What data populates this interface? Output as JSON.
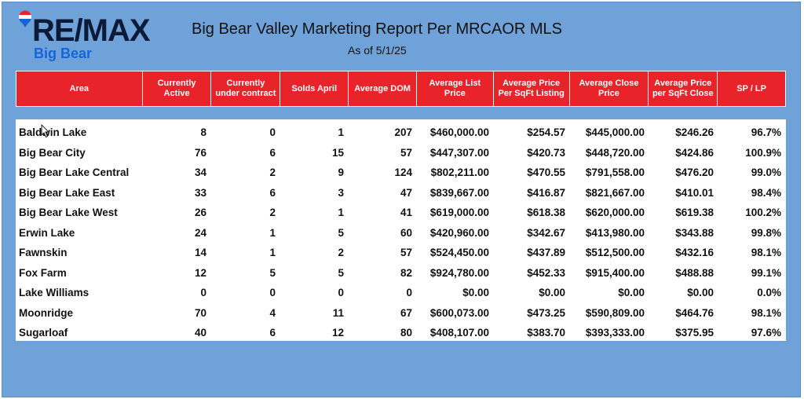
{
  "header": {
    "logo_main": "RE/MAX",
    "logo_sub": "Big Bear",
    "title": "Big Bear Valley Marketing Report Per MRCAOR MLS",
    "subtitle": "As of 5/1/25"
  },
  "colors": {
    "background": "#6fa2d8",
    "header_red": "#e8232a",
    "logo_navy": "#0b1a36",
    "logo_blue": "#1565d8"
  },
  "table": {
    "columns": [
      "Area",
      "Currently Active",
      "Currently under contract",
      "Solds April",
      "Average DOM",
      "Average List Price",
      "Average Price Per SqFt Listing",
      "Average Close Price",
      "Average Price per SqFt Close",
      "SP / LP"
    ],
    "rows": [
      [
        "Baldwin Lake",
        "8",
        "0",
        "1",
        "207",
        "$460,000.00",
        "$254.57",
        "$445,000.00",
        "$246.26",
        "96.7%"
      ],
      [
        "Big Bear City",
        "76",
        "6",
        "15",
        "57",
        "$447,307.00",
        "$420.73",
        "$448,720.00",
        "$424.86",
        "100.9%"
      ],
      [
        "Big Bear Lake Central",
        "34",
        "2",
        "9",
        "124",
        "$802,211.00",
        "$470.55",
        "$791,558.00",
        "$476.20",
        "99.0%"
      ],
      [
        "Big Bear Lake East",
        "33",
        "6",
        "3",
        "47",
        "$839,667.00",
        "$416.87",
        "$821,667.00",
        "$410.01",
        "98.4%"
      ],
      [
        "Big Bear Lake West",
        "26",
        "2",
        "1",
        "41",
        "$619,000.00",
        "$618.38",
        "$620,000.00",
        "$619.38",
        "100.2%"
      ],
      [
        "Erwin Lake",
        "24",
        "1",
        "5",
        "60",
        "$420,960.00",
        "$342.67",
        "$413,980.00",
        "$343.88",
        "99.8%"
      ],
      [
        "Fawnskin",
        "14",
        "1",
        "2",
        "57",
        "$524,450.00",
        "$437.89",
        "$512,500.00",
        "$432.16",
        "98.1%"
      ],
      [
        "Fox Farm",
        "12",
        "5",
        "5",
        "82",
        "$924,780.00",
        "$452.33",
        "$915,400.00",
        "$488.88",
        "99.1%"
      ],
      [
        "Lake Williams",
        "0",
        "0",
        "0",
        "0",
        "$0.00",
        "$0.00",
        "$0.00",
        "$0.00",
        "0.0%"
      ],
      [
        "Moonridge",
        "70",
        "4",
        "11",
        "67",
        "$600,073.00",
        "$473.25",
        "$590,809.00",
        "$464.76",
        "98.1%"
      ],
      [
        "Sugarloaf",
        "40",
        "6",
        "12",
        "80",
        "$408,107.00",
        "$383.70",
        "$393,333.00",
        "$375.95",
        "97.6%"
      ]
    ]
  }
}
